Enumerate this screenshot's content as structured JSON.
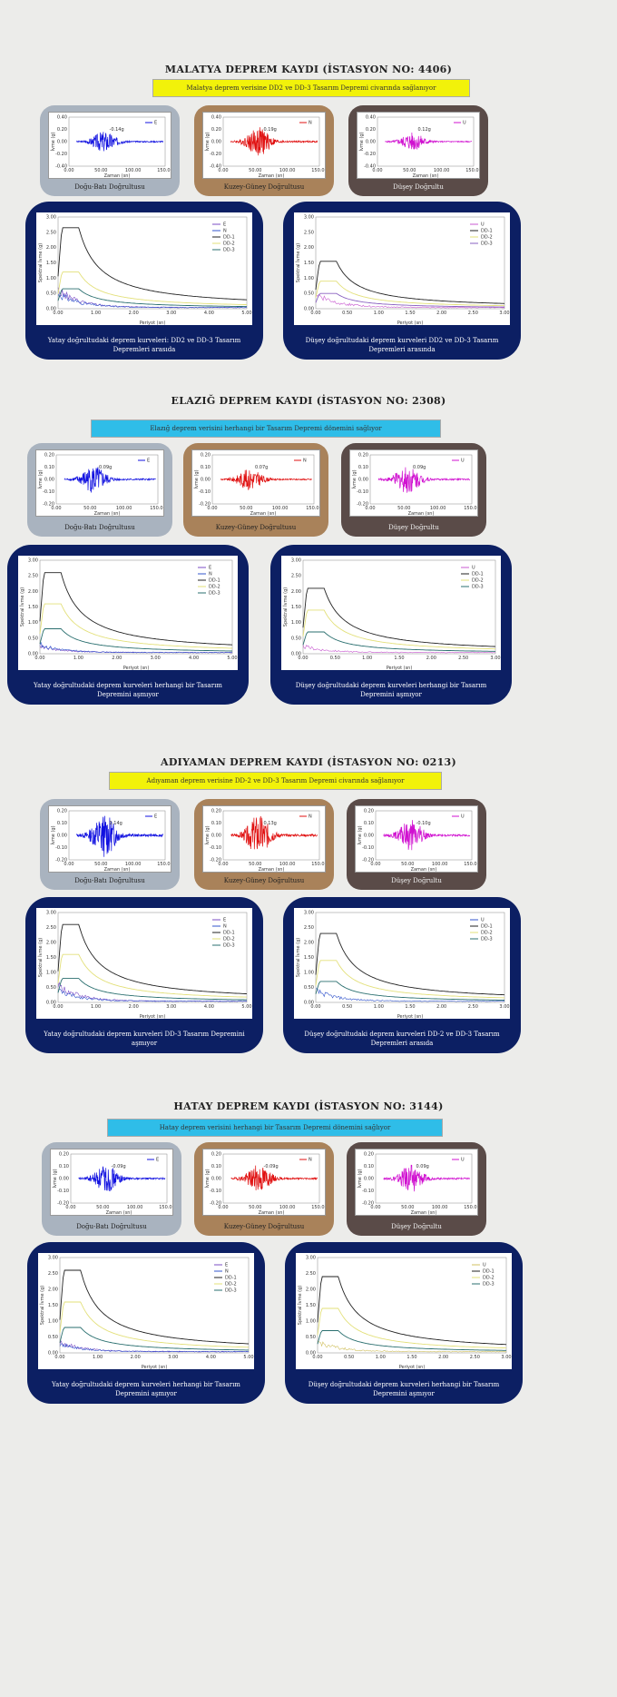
{
  "sections": [
    {
      "title": "MALATYA DEPREM KAYDI (İSTASYON NO: 4406)",
      "banner": "Malatya deprem verisine DD2 ve DD-3 Tasarım Depremi civarında sağlanıyor",
      "banner_color": "#f2f20a",
      "small_captions": [
        "Doğu-Batı Doğrultusu",
        "Kuzey-Güney Doğrultusu",
        "Düşey Doğrultu"
      ],
      "big_captions": [
        "Yatay doğrultudaki deprem kurveleri: DD2 ve DD-3 Tasarım Depremleri arasıda",
        "Düşey doğrultudaki deprem kurveleri DD2 ve DD-3 Tasarım Depremleri arasında"
      ]
    },
    {
      "title": "ELAZIĞ DEPREM KAYDI (İSTASYON NO: 2308)",
      "banner": "Elazığ deprem verisini herhangi bir Tasarım Depremi dönemini sağlıyor",
      "banner_color": "#2fbde8",
      "small_captions": [
        "Doğu-Batı Doğrultusu",
        "Kuzey-Güney Doğrultusu",
        "Düşey Doğrultu"
      ],
      "big_captions": [
        "Yatay doğrultudaki deprem kurveleri herhangi bir Tasarım Depremini aşmıyor",
        "Düşey doğrultudaki deprem kurveleri herhangi bir Tasarım Depremini aşmıyor"
      ]
    },
    {
      "title": "ADIYAMAN DEPREM KAYDI (İSTASYON NO: 0213)",
      "banner": "Adıyaman deprem verisine DD-2 ve DD-3 Tasarım Depremi civarında sağlanıyor",
      "banner_color": "#f2f20a",
      "small_captions": [
        "Doğu-Batı Doğrultusu",
        "Kuzey-Güney Doğrultusu",
        "Düşey Doğrultu"
      ],
      "big_captions": [
        "Yatay doğrultudaki deprem kurveleri DD-3 Tasarım Depremini aşmıyor",
        "Düşey doğrultudaki deprem kurveleri DD-2 ve DD-3 Tasarım Depremleri arasıda"
      ]
    },
    {
      "title": "HATAY DEPREM KAYDI (İSTASYON NO: 3144)",
      "banner": "Hatay deprem verisini herhangi bir Tasarım Depremi dönemini sağlıyor",
      "banner_color": "#2fbde8",
      "small_captions": [
        "Doğu-Batı Doğrultusu",
        "Kuzey-Güney Doğrultusu",
        "Düşey Doğrultu"
      ],
      "big_captions": [
        "Yatay doğrultudaki deprem kurveleri herhangi bir Tasarım Depremini aşmıyor",
        "Düşey doğrultudaki deprem kurveleri herhangi bir Tasarım Depremini aşmıyor"
      ]
    }
  ],
  "chart_data": [
    {
      "type": "line",
      "title": "",
      "xlabel": "Zaman (sn)",
      "ylabel": "İvme (g)",
      "xticks": [
        "0.00",
        "50.00",
        "100.00",
        "150.00"
      ],
      "yticks": [
        "0.40",
        "0.20",
        "0.00",
        "-0.20",
        "-0.40"
      ],
      "series": [
        {
          "name": "E",
          "color": "#1010e0"
        }
      ],
      "peak_label": "-0.14g",
      "amplitude": 0.14
    },
    {
      "type": "line",
      "title": "",
      "xlabel": "Zaman (sn)",
      "ylabel": "İvme (g)",
      "xticks": [
        "0.00",
        "50.00",
        "100.00",
        "150.00"
      ],
      "yticks": [
        "0.40",
        "0.20",
        "0.00",
        "-0.20",
        "-0.40"
      ],
      "series": [
        {
          "name": "N",
          "color": "#e01010"
        }
      ],
      "peak_label": "0.19g",
      "amplitude": 0.19
    },
    {
      "type": "line",
      "title": "",
      "xlabel": "Zaman (sn)",
      "ylabel": "İvme (g)",
      "xticks": [
        "0.00",
        "50.00",
        "100.00",
        "150.00"
      ],
      "yticks": [
        "0.40",
        "0.20",
        "0.00",
        "-0.20",
        "-0.40"
      ],
      "series": [
        {
          "name": "U",
          "color": "#d010d0"
        }
      ],
      "peak_label": "0.12g",
      "amplitude": 0.12
    },
    {
      "type": "line",
      "title": "",
      "xlabel": "Periyot (sn)",
      "ylabel": "Spektral İvme (g)",
      "xticks": [
        "0.00",
        "1.00",
        "2.00",
        "3.00",
        "4.00",
        "5.00"
      ],
      "yticks": [
        "0.00",
        "0.50",
        "1.00",
        "1.50",
        "2.00",
        "2.50",
        "3.00"
      ],
      "xlim": [
        0,
        5
      ],
      "ylim": [
        0,
        3
      ],
      "series": [
        {
          "name": "E",
          "color": "#7b4cc6",
          "peak": 0.55
        },
        {
          "name": "N",
          "color": "#3355cc",
          "peak": 0.45
        },
        {
          "name": "DD-1",
          "color": "#222222",
          "peak": 2.65
        },
        {
          "name": "DD-2",
          "color": "#e3e07a",
          "peak": 1.2
        },
        {
          "name": "DD-3",
          "color": "#2a6f6f",
          "peak": 0.65
        }
      ]
    },
    {
      "type": "line",
      "title": "",
      "xlabel": "Periyot (sn)",
      "ylabel": "Spektral İvme (g)",
      "xticks": [
        "0.00",
        "0.50",
        "1.00",
        "1.50",
        "2.00",
        "2.50",
        "3.00"
      ],
      "yticks": [
        "0.00",
        "0.50",
        "1.00",
        "1.50",
        "2.00",
        "2.50",
        "3.00"
      ],
      "xlim": [
        0,
        3
      ],
      "ylim": [
        0,
        3
      ],
      "series": [
        {
          "name": "U",
          "color": "#c85ad0",
          "peak": 0.45
        },
        {
          "name": "DD-1",
          "color": "#222222",
          "peak": 1.55
        },
        {
          "name": "DD-2",
          "color": "#e3e07a",
          "peak": 0.9
        },
        {
          "name": "DD-3",
          "color": "#8a62c0",
          "peak": 0.5
        }
      ]
    },
    {
      "type": "line",
      "title": "",
      "xlabel": "Zaman (sn)",
      "ylabel": "İvme (g)",
      "xticks": [
        "0.00",
        "50.00",
        "100.00",
        "150.00"
      ],
      "yticks": [
        "0.20",
        "0.10",
        "0.00",
        "-0.10",
        "-0.20"
      ],
      "series": [
        {
          "name": "E",
          "color": "#1010e0"
        }
      ],
      "peak_label": "0.09g",
      "amplitude": 0.09
    },
    {
      "type": "line",
      "title": "",
      "xlabel": "Zaman (sn)",
      "ylabel": "İvme (g)",
      "xticks": [
        "0.00",
        "50.00",
        "100.00",
        "150.00"
      ],
      "yticks": [
        "0.20",
        "0.10",
        "0.00",
        "-0.10",
        "-0.20"
      ],
      "series": [
        {
          "name": "N",
          "color": "#e01010"
        }
      ],
      "peak_label": "0.07g",
      "amplitude": 0.07
    },
    {
      "type": "line",
      "title": "",
      "xlabel": "Zaman (sn)",
      "ylabel": "İvme (g)",
      "xticks": [
        "0.00",
        "50.00",
        "100.00",
        "150.00"
      ],
      "yticks": [
        "0.20",
        "0.10",
        "0.00",
        "-0.10",
        "-0.20"
      ],
      "series": [
        {
          "name": "U",
          "color": "#d010d0"
        }
      ],
      "peak_label": "0.09g",
      "amplitude": 0.09
    },
    {
      "type": "line",
      "title": "",
      "xlabel": "Periyot (sn)",
      "ylabel": "Spektral İvme (g)",
      "xticks": [
        "0.00",
        "1.00",
        "2.00",
        "3.00",
        "4.00",
        "5.00"
      ],
      "yticks": [
        "0.00",
        "0.50",
        "1.00",
        "1.50",
        "2.00",
        "2.50",
        "3.00"
      ],
      "xlim": [
        0,
        5
      ],
      "ylim": [
        0,
        3
      ],
      "series": [
        {
          "name": "E",
          "color": "#7b4cc6",
          "peak": 0.2
        },
        {
          "name": "N",
          "color": "#3355cc",
          "peak": 0.25
        },
        {
          "name": "DD-1",
          "color": "#222222",
          "peak": 2.6
        },
        {
          "name": "DD-2",
          "color": "#e3e07a",
          "peak": 1.6
        },
        {
          "name": "DD-3",
          "color": "#2a6f6f",
          "peak": 0.8
        }
      ]
    },
    {
      "type": "line",
      "title": "",
      "xlabel": "Periyot (sn)",
      "ylabel": "Spektral İvme (g)",
      "xticks": [
        "0.00",
        "0.50",
        "1.00",
        "1.50",
        "2.00",
        "2.50",
        "3.00"
      ],
      "yticks": [
        "0.00",
        "0.50",
        "1.00",
        "1.50",
        "2.00",
        "2.50",
        "3.00"
      ],
      "xlim": [
        0,
        3
      ],
      "ylim": [
        0,
        3
      ],
      "series": [
        {
          "name": "U",
          "color": "#c85ad0",
          "peak": 0.2
        },
        {
          "name": "DD-1",
          "color": "#222222",
          "peak": 2.1
        },
        {
          "name": "DD-2",
          "color": "#e3e07a",
          "peak": 1.4
        },
        {
          "name": "DD-3",
          "color": "#2a6f6f",
          "peak": 0.7
        }
      ]
    },
    {
      "type": "line",
      "title": "",
      "xlabel": "Zaman (sn)",
      "ylabel": "İvme (g)",
      "xticks": [
        "0.00",
        "50.00",
        "100.00",
        "150.00"
      ],
      "yticks": [
        "0.20",
        "0.10",
        "0.00",
        "-0.10",
        "-0.20"
      ],
      "series": [
        {
          "name": "E",
          "color": "#1010e0"
        }
      ],
      "peak_label": "0.14g",
      "amplitude": 0.14
    },
    {
      "type": "line",
      "title": "",
      "xlabel": "Zaman (sn)",
      "ylabel": "İvme (g)",
      "xticks": [
        "0.00",
        "50.00",
        "100.00",
        "150.00"
      ],
      "yticks": [
        "0.20",
        "0.10",
        "0.00",
        "-0.10",
        "-0.20"
      ],
      "series": [
        {
          "name": "N",
          "color": "#e01010"
        }
      ],
      "peak_label": "0.13g",
      "amplitude": 0.13
    },
    {
      "type": "line",
      "title": "",
      "xlabel": "Zaman (sn)",
      "ylabel": "İvme (g)",
      "xticks": [
        "0.00",
        "50.00",
        "100.00",
        "150.00"
      ],
      "yticks": [
        "0.20",
        "0.10",
        "0.00",
        "-0.10",
        "-0.20"
      ],
      "series": [
        {
          "name": "U",
          "color": "#d010d0"
        }
      ],
      "peak_label": "-0.10g",
      "amplitude": 0.1
    },
    {
      "type": "line",
      "title": "",
      "xlabel": "Periyot (sn)",
      "ylabel": "Spektral İvme (g)",
      "xticks": [
        "0.00",
        "1.00",
        "2.00",
        "3.00",
        "4.00",
        "5.00"
      ],
      "yticks": [
        "0.00",
        "0.50",
        "1.00",
        "1.50",
        "2.00",
        "2.50",
        "3.00"
      ],
      "xlim": [
        0,
        5
      ],
      "ylim": [
        0,
        3
      ],
      "series": [
        {
          "name": "E",
          "color": "#7b4cc6",
          "peak": 0.5
        },
        {
          "name": "N",
          "color": "#3355cc",
          "peak": 0.35
        },
        {
          "name": "DD-1",
          "color": "#222222",
          "peak": 2.6
        },
        {
          "name": "DD-2",
          "color": "#e3e07a",
          "peak": 1.6
        },
        {
          "name": "DD-3",
          "color": "#2a6f6f",
          "peak": 0.8
        }
      ]
    },
    {
      "type": "line",
      "title": "",
      "xlabel": "Periyot (sn)",
      "ylabel": "Spektral İvme (g)",
      "xticks": [
        "0.00",
        "0.50",
        "1.00",
        "1.50",
        "2.00",
        "2.50",
        "3.00"
      ],
      "yticks": [
        "0.00",
        "0.50",
        "1.00",
        "1.50",
        "2.00",
        "2.50",
        "3.00"
      ],
      "xlim": [
        0,
        3
      ],
      "ylim": [
        0,
        3
      ],
      "series": [
        {
          "name": "U",
          "color": "#3355cc",
          "peak": 0.35
        },
        {
          "name": "DD-1",
          "color": "#222222",
          "peak": 2.3
        },
        {
          "name": "DD-2",
          "color": "#e3e07a",
          "peak": 1.4
        },
        {
          "name": "DD-3",
          "color": "#2a6f6f",
          "peak": 0.7
        }
      ]
    },
    {
      "type": "line",
      "title": "",
      "xlabel": "Zaman (sn)",
      "ylabel": "İvme (g)",
      "xticks": [
        "0.00",
        "50.00",
        "100.00",
        "150.00"
      ],
      "yticks": [
        "0.20",
        "0.10",
        "0.00",
        "-0.10",
        "-0.20"
      ],
      "series": [
        {
          "name": "E",
          "color": "#1010e0"
        }
      ],
      "peak_label": "-0.09g",
      "amplitude": 0.09
    },
    {
      "type": "line",
      "title": "",
      "xlabel": "Zaman (sn)",
      "ylabel": "İvme (g)",
      "xticks": [
        "0.00",
        "50.00",
        "100.00",
        "150.00"
      ],
      "yticks": [
        "0.20",
        "0.10",
        "0.00",
        "-0.10",
        "-0.20"
      ],
      "series": [
        {
          "name": "N",
          "color": "#e01010"
        }
      ],
      "peak_label": "-0.09g",
      "amplitude": 0.09
    },
    {
      "type": "line",
      "title": "",
      "xlabel": "Zaman (sn)",
      "ylabel": "İvme (g)",
      "xticks": [
        "0.00",
        "50.00",
        "100.00",
        "150.00"
      ],
      "yticks": [
        "0.20",
        "0.10",
        "0.00",
        "-0.10",
        "-0.20"
      ],
      "series": [
        {
          "name": "U",
          "color": "#d010d0"
        }
      ],
      "peak_label": "0.09g",
      "amplitude": 0.09
    },
    {
      "type": "line",
      "title": "",
      "xlabel": "Periyot (sn)",
      "ylabel": "Spektral İvme (g)",
      "xticks": [
        "0.00",
        "1.00",
        "2.00",
        "3.00",
        "4.00",
        "5.00"
      ],
      "yticks": [
        "0.00",
        "0.50",
        "1.00",
        "1.50",
        "2.00",
        "2.50",
        "3.00"
      ],
      "xlim": [
        0,
        5
      ],
      "ylim": [
        0,
        3
      ],
      "series": [
        {
          "name": "E",
          "color": "#7b4cc6",
          "peak": 0.3
        },
        {
          "name": "N",
          "color": "#3355cc",
          "peak": 0.25
        },
        {
          "name": "DD-1",
          "color": "#222222",
          "peak": 2.6
        },
        {
          "name": "DD-2",
          "color": "#e3e07a",
          "peak": 1.6
        },
        {
          "name": "DD-3",
          "color": "#2a6f6f",
          "peak": 0.8
        }
      ]
    },
    {
      "type": "line",
      "title": "",
      "xlabel": "Periyot (sn)",
      "ylabel": "Spektral İvme (g)",
      "xticks": [
        "0.00",
        "0.50",
        "1.00",
        "1.50",
        "2.00",
        "2.50",
        "3.00"
      ],
      "yticks": [
        "0.00",
        "0.50",
        "1.00",
        "1.50",
        "2.00",
        "2.50",
        "3.00"
      ],
      "xlim": [
        0,
        3
      ],
      "ylim": [
        0,
        3
      ],
      "series": [
        {
          "name": "U",
          "color": "#d0c060",
          "peak": 0.3
        },
        {
          "name": "DD-1",
          "color": "#222222",
          "peak": 2.4
        },
        {
          "name": "DD-2",
          "color": "#e3e07a",
          "peak": 1.4
        },
        {
          "name": "DD-3",
          "color": "#2a6f6f",
          "peak": 0.7
        }
      ]
    }
  ]
}
